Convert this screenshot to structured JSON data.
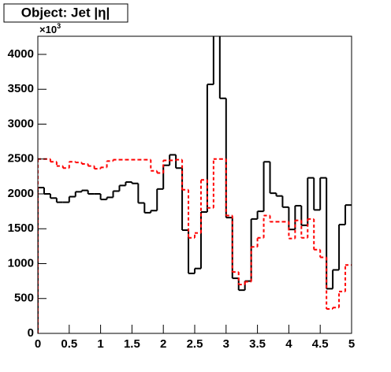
{
  "chart_data": {
    "type": "histogram",
    "title": "Object: Jet |η|",
    "y_multiplier": {
      "base": "×10",
      "exponent": "3"
    },
    "bins": [
      0,
      0.1,
      0.2,
      0.3,
      0.4,
      0.5,
      0.6,
      0.7,
      0.8,
      0.9,
      1,
      1.1,
      1.2,
      1.3,
      1.4,
      1.5,
      1.6,
      1.7,
      1.8,
      1.9,
      2,
      2.1,
      2.2,
      2.3,
      2.4,
      2.5,
      2.6,
      2.7,
      2.8,
      2.9,
      3,
      3.1,
      3.2,
      3.3,
      3.4,
      3.5,
      3.6,
      3.7,
      3.8,
      3.9,
      4,
      4.1,
      4.2,
      4.3,
      4.4,
      4.5,
      4.6,
      4.7,
      4.8,
      4.9,
      5
    ],
    "series": [
      {
        "color": "#000000",
        "style": "solid",
        "values": [
          2090,
          2000,
          1940,
          1880,
          1880,
          1960,
          2030,
          2050,
          2000,
          2000,
          1920,
          1950,
          2040,
          2120,
          2170,
          2150,
          1870,
          1730,
          1760,
          2070,
          2410,
          2560,
          2370,
          1480,
          860,
          930,
          1740,
          3570,
          4400,
          3370,
          1660,
          790,
          620,
          750,
          1640,
          1750,
          2460,
          2010,
          1970,
          1810,
          1490,
          1830,
          1550,
          2230,
          1770,
          2230,
          640,
          910,
          1560,
          1840
        ]
      },
      {
        "color": "#ff0000",
        "style": "dashed",
        "values": [
          2500,
          2500,
          2460,
          2400,
          2370,
          2460,
          2450,
          2430,
          2400,
          2360,
          2380,
          2470,
          2490,
          2490,
          2490,
          2490,
          2490,
          2490,
          2330,
          2300,
          2480,
          2480,
          2490,
          2060,
          1370,
          1440,
          2200,
          1800,
          2500,
          2500,
          1690,
          880,
          700,
          740,
          1240,
          1370,
          1690,
          1600,
          1600,
          1600,
          1360,
          1620,
          1370,
          1640,
          1200,
          1090,
          350,
          370,
          600,
          980
        ]
      }
    ],
    "xlim": [
      0,
      5
    ],
    "ylim": [
      0,
      4260
    ],
    "xticks": [
      0,
      0.5,
      1,
      1.5,
      2,
      2.5,
      3,
      3.5,
      4,
      4.5,
      5
    ],
    "yticks": [
      0,
      500,
      1000,
      1500,
      2000,
      2500,
      3000,
      3500,
      4000
    ]
  }
}
